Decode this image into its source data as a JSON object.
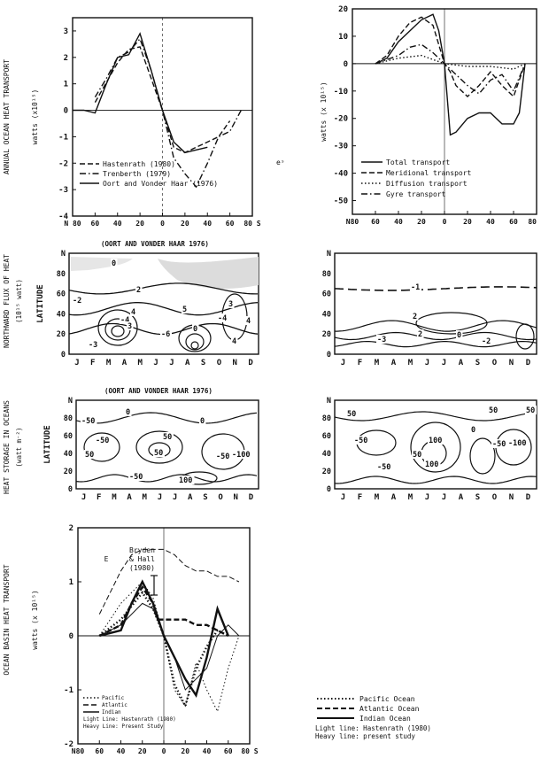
{
  "chart_data": [
    {
      "type": "line",
      "ylabel_outer": "ANNUAL OCEAN HEAT TRANSPORT",
      "ylabel": "watts (x10¹⁵)",
      "x_ticks": [
        "N 80",
        "60",
        "40",
        "20",
        "0",
        "20",
        "40",
        "60",
        "80 S"
      ],
      "y_ticks": [
        "3",
        "2",
        "1",
        "0",
        "-1",
        "-2",
        "-3",
        "-4"
      ],
      "xlim": [
        -80,
        80
      ],
      "ylim": [
        -4,
        3.5
      ],
      "series": [
        {
          "name": "Hastenrath (1980)",
          "style": "dashed",
          "x": [
            -60,
            -40,
            -30,
            -20,
            -10,
            0,
            10,
            20,
            30,
            40,
            50,
            60
          ],
          "y": [
            0.3,
            1.8,
            2.3,
            2.4,
            1.2,
            0,
            -1.4,
            -1.6,
            -1.4,
            -1.2,
            -1.0,
            -0.4
          ]
        },
        {
          "name": "Trenberth (1979)",
          "style": "dashdot",
          "x": [
            -60,
            -50,
            -40,
            -30,
            -20,
            -10,
            0,
            10,
            20,
            30,
            40,
            50,
            60,
            70
          ],
          "y": [
            0.5,
            1.2,
            2.0,
            2.2,
            2.7,
            1.5,
            0,
            -1.8,
            -2.4,
            -2.9,
            -2.0,
            -1.0,
            -0.8,
            0
          ]
        },
        {
          "name": "Oort and Vonder Haar (1976)",
          "style": "solid",
          "x": [
            -80,
            -70,
            -60,
            -50,
            -40,
            -30,
            -20,
            -10,
            0,
            10,
            20,
            30,
            40
          ],
          "y": [
            0,
            0,
            -0.1,
            1.0,
            2.0,
            2.1,
            2.9,
            1.5,
            0,
            -1.2,
            -1.6,
            -1.5,
            -1.4
          ]
        }
      ]
    },
    {
      "type": "line",
      "ylabel": "watts (x 10¹⁵)",
      "x_ticks": [
        "N80",
        "60",
        "40",
        "20",
        "0",
        "20",
        "40",
        "60",
        "80 S"
      ],
      "y_ticks": [
        "20",
        "10",
        "0",
        "-10",
        "-20",
        "-30",
        "-40",
        "-50"
      ],
      "xlim": [
        -80,
        80
      ],
      "ylim": [
        -55,
        20
      ],
      "series": [
        {
          "name": "Total transport",
          "style": "solid",
          "x": [
            -60,
            -50,
            -40,
            -30,
            -20,
            -10,
            -5,
            0,
            5,
            10,
            20,
            30,
            40,
            50,
            60,
            65,
            70
          ],
          "y": [
            0,
            2,
            8,
            12,
            16,
            18,
            12,
            0,
            -26,
            -25,
            -20,
            -18,
            -18,
            -22,
            -22,
            -18,
            0
          ]
        },
        {
          "name": "Meridional transport",
          "style": "dashed",
          "x": [
            -60,
            -50,
            -40,
            -30,
            -20,
            -10,
            0,
            5,
            10,
            20,
            30,
            40,
            50,
            60,
            70
          ],
          "y": [
            0,
            3,
            10,
            15,
            17,
            14,
            0,
            -3,
            -8,
            -12,
            -8,
            -3,
            -8,
            -12,
            0
          ]
        },
        {
          "name": "Diffusion transport",
          "style": "dotted",
          "x": [
            -60,
            -40,
            -20,
            0,
            20,
            40,
            60,
            70
          ],
          "y": [
            0,
            2,
            3,
            0,
            -1,
            -1,
            -2,
            0
          ]
        },
        {
          "name": "Gyre transport",
          "style": "dashdot",
          "x": [
            -60,
            -40,
            -30,
            -20,
            -10,
            0,
            10,
            20,
            30,
            40,
            50,
            60,
            70
          ],
          "y": [
            0,
            3,
            6,
            7,
            4,
            0,
            -4,
            -8,
            -11,
            -6,
            -4,
            -10,
            0
          ]
        }
      ]
    },
    {
      "type": "heatmap",
      "title": "(OORT AND VONDER HAAR 1976)",
      "ylabel_outer": "NORTHWARD FLUX OF HEAT",
      "ylabel_unit": "(10¹⁵ watt)",
      "ylabel": "LATITUDE",
      "x_ticks": [
        "J",
        "F",
        "M",
        "A",
        "M",
        "J",
        "J",
        "A",
        "S",
        "O",
        "N",
        "D"
      ],
      "y_ticks": [
        "N",
        "80",
        "60",
        "40",
        "20",
        "0"
      ],
      "contour_labels": [
        "0",
        "2",
        "-2",
        "4",
        "-4",
        "3",
        "-3",
        "5",
        "-6",
        "0",
        "3",
        "-4",
        "4",
        "4"
      ]
    },
    {
      "type": "heatmap",
      "ylabel": "",
      "x_ticks": [
        "J",
        "F",
        "M",
        "A",
        "M",
        "J",
        "J",
        "A",
        "S",
        "O",
        "N",
        "D"
      ],
      "y_ticks": [
        "N",
        "80",
        "60",
        "40",
        "20",
        "0"
      ],
      "contour_labels": [
        "-1",
        "-3",
        "2",
        "-2",
        "0",
        "2"
      ]
    },
    {
      "type": "heatmap",
      "title": "(OORT AND VONDER HAAR 1976)",
      "ylabel_outer": "HEAT STORAGE IN OCEANS",
      "ylabel_unit": "(watt m⁻²)",
      "ylabel": "LATITUDE",
      "x_ticks": [
        "J",
        "F",
        "M",
        "A",
        "M",
        "J",
        "J",
        "A",
        "S",
        "O",
        "N",
        "D"
      ],
      "y_ticks": [
        "N",
        "80",
        "60",
        "40",
        "20",
        "0"
      ],
      "contour_labels": [
        "-50",
        "0",
        "50",
        "-50",
        "-100",
        "-50",
        "50",
        "0",
        "-50",
        "100",
        "50"
      ]
    },
    {
      "type": "heatmap",
      "ylabel": "",
      "x_ticks": [
        "J",
        "F",
        "M",
        "A",
        "M",
        "J",
        "J",
        "A",
        "S",
        "O",
        "N",
        "D"
      ],
      "y_ticks": [
        "N",
        "80",
        "60",
        "40",
        "20",
        "0"
      ],
      "contour_labels": [
        "50",
        "-50",
        "50",
        "0",
        "100",
        "-50",
        "-100",
        "100",
        "50",
        "-50",
        "50"
      ]
    },
    {
      "type": "line",
      "ylabel_outer": "OCEAN BASIN HEAT TRANSPORT",
      "ylabel": "watts (x 10¹⁵)",
      "x_ticks": [
        "N80",
        "60",
        "40",
        "20",
        "0",
        "20",
        "40",
        "60",
        "80 S"
      ],
      "y_ticks": [
        "2",
        "1",
        "0",
        "-1",
        "-2"
      ],
      "xlim": [
        -80,
        80
      ],
      "ylim": [
        -2,
        2
      ],
      "annotation": "Bryden & Hall (1980)",
      "annotation_letter": "E",
      "inner_legend": [
        "Pacific",
        "Atlantic",
        "Indian",
        "Light Line: Hastenrath (1980)",
        "Heavy Line: Present Study"
      ],
      "series": [
        {
          "name": "Pacific Ocean",
          "style": "dotted",
          "weight": "light",
          "x": [
            -60,
            -40,
            -20,
            -10,
            0,
            10,
            20,
            30,
            40,
            50,
            60,
            70
          ],
          "y": [
            0,
            0.6,
            1.0,
            0.7,
            0,
            -1.0,
            -1.3,
            -0.5,
            -1.0,
            -1.4,
            -0.6,
            0
          ]
        },
        {
          "name": "Atlantic Ocean",
          "style": "dashed",
          "weight": "light",
          "x": [
            -60,
            -40,
            -30,
            -20,
            -10,
            0,
            10,
            20,
            30,
            40,
            50,
            60,
            70
          ],
          "y": [
            0.4,
            1.2,
            1.5,
            1.6,
            1.6,
            1.6,
            1.5,
            1.3,
            1.2,
            1.2,
            1.1,
            1.1,
            1.0
          ]
        },
        {
          "name": "Indian Ocean",
          "style": "solid",
          "weight": "light",
          "x": [
            -60,
            -40,
            -20,
            -10,
            0,
            10,
            20,
            30,
            40,
            50,
            60,
            70
          ],
          "y": [
            0,
            0.2,
            0.6,
            0.5,
            0,
            -0.4,
            -1.0,
            -0.8,
            -0.6,
            0.0,
            0.2,
            0
          ]
        },
        {
          "name": "Pacific Ocean",
          "style": "dotted",
          "weight": "heavy",
          "x": [
            -60,
            -40,
            -20,
            -10,
            0,
            10,
            20,
            30,
            40,
            50,
            60
          ],
          "y": [
            0,
            0.3,
            0.8,
            0.5,
            0,
            -0.9,
            -1.3,
            -0.6,
            -0.2,
            0.1,
            0
          ]
        },
        {
          "name": "Atlantic Ocean",
          "style": "dashed",
          "weight": "heavy",
          "x": [
            -60,
            -40,
            -30,
            -20,
            -10,
            -5,
            0,
            10,
            20,
            30,
            40,
            50,
            60
          ],
          "y": [
            0,
            0.2,
            0.6,
            0.9,
            0.6,
            0.3,
            0.3,
            0.3,
            0.3,
            0.2,
            0.2,
            0.1,
            0
          ]
        },
        {
          "name": "Indian Ocean",
          "style": "solid",
          "weight": "heavy",
          "x": [
            -60,
            -40,
            -30,
            -20,
            -10,
            0,
            10,
            20,
            30,
            40,
            50,
            60
          ],
          "y": [
            0,
            0.1,
            0.6,
            1.0,
            0.6,
            0,
            -0.4,
            -0.8,
            -1.1,
            -0.4,
            0.5,
            0
          ]
        }
      ]
    }
  ],
  "legend_bottom": {
    "items": [
      {
        "label": "Pacific Ocean",
        "style": "dotted"
      },
      {
        "label": "Atlantic Ocean",
        "style": "dashed"
      },
      {
        "label": "Indian Ocean",
        "style": "solid"
      }
    ],
    "notes": [
      "Light line: Hastenrath (1980)",
      "Heavy line: present study"
    ]
  },
  "stray_mark": "eˢ"
}
